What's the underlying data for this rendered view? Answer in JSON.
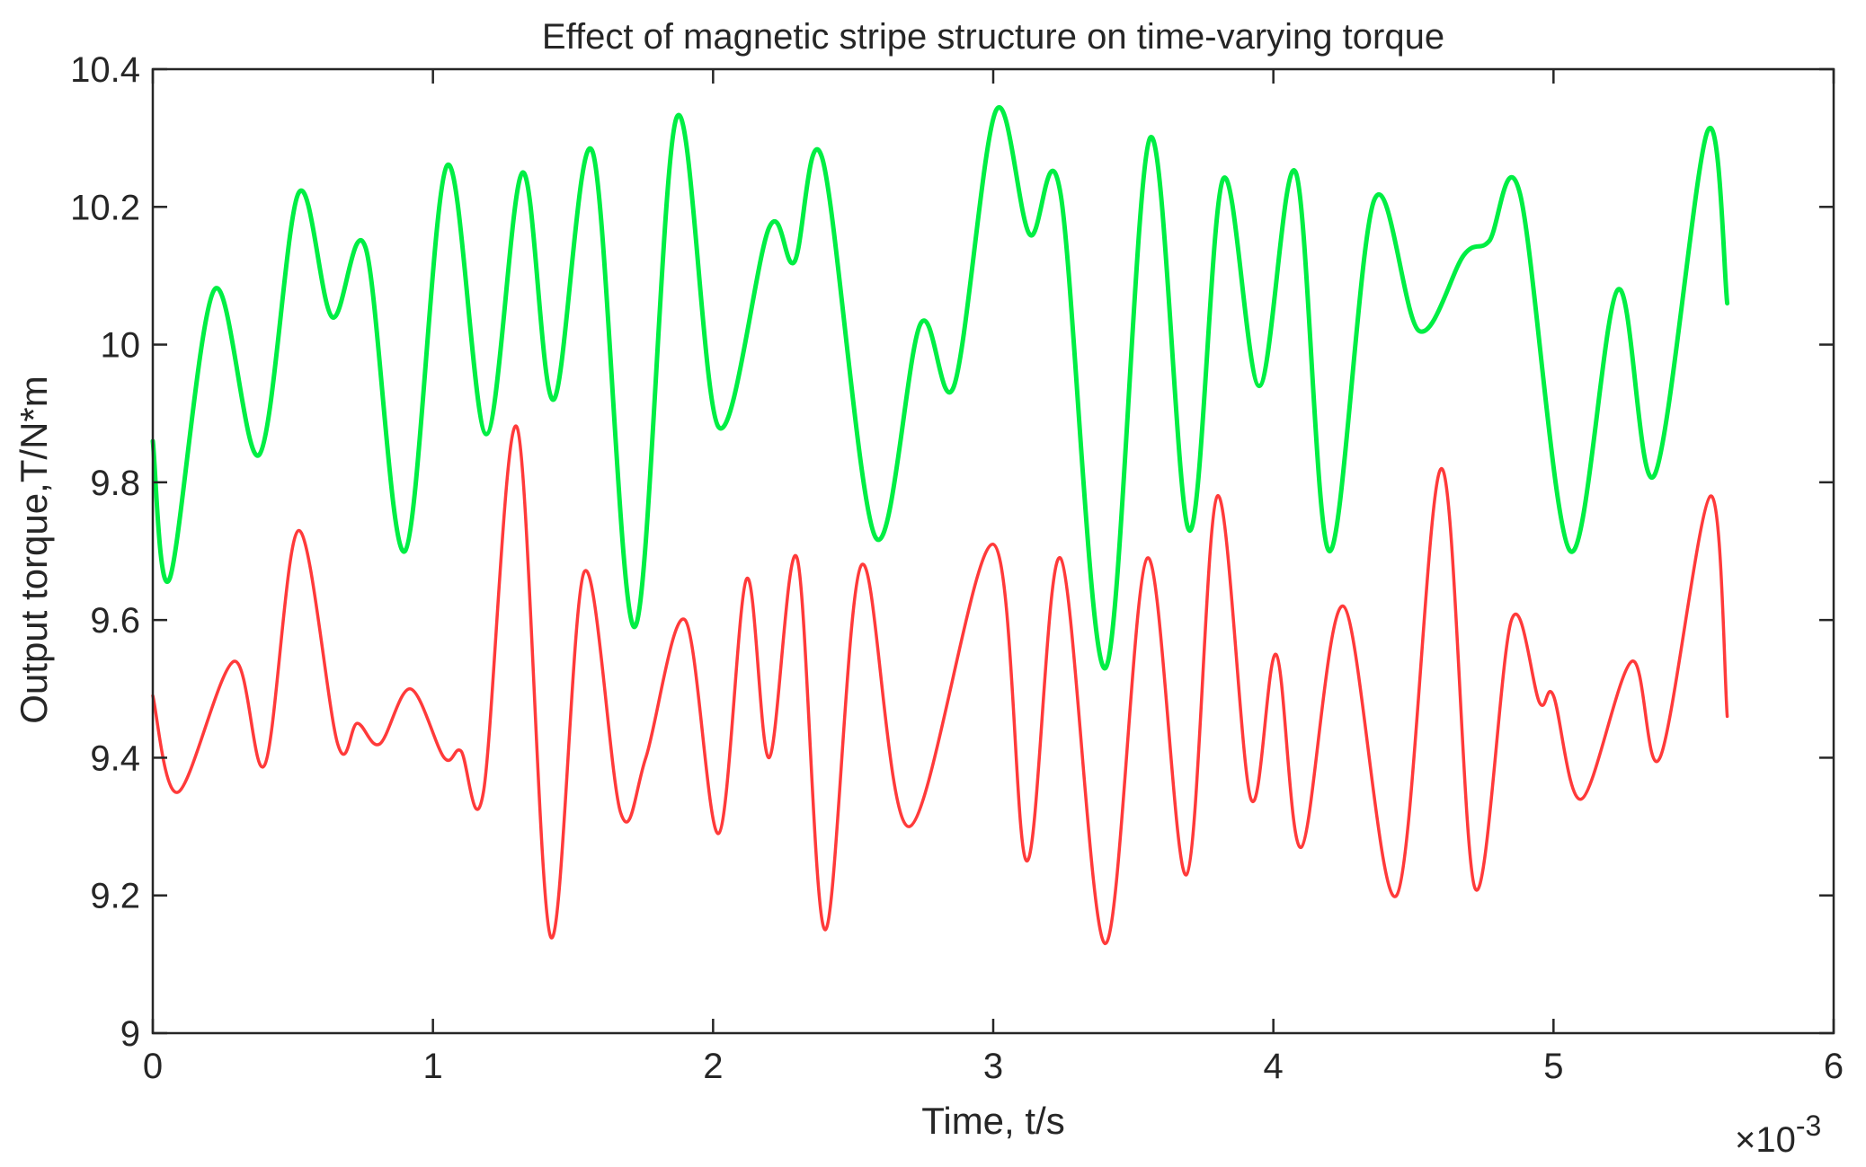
{
  "chart_data": {
    "type": "line",
    "title": "Effect of magnetic stripe structure on time-varying torque",
    "xlabel": "Time, t/s",
    "ylabel": "Output torque,T/N*m",
    "x_exponent_label": "×10",
    "x_exponent_power": "-3",
    "xlim": [
      0,
      6
    ],
    "ylim": [
      9.0,
      10.4
    ],
    "xticks": [
      0,
      1,
      2,
      3,
      4,
      5,
      6
    ],
    "xtick_labels": [
      "0",
      "1",
      "2",
      "3",
      "4",
      "5",
      "6"
    ],
    "yticks": [
      9.0,
      9.2,
      9.4,
      9.6,
      9.8,
      10.0,
      10.2,
      10.4
    ],
    "ytick_labels": [
      "9",
      "9.2",
      "9.4",
      "9.6",
      "9.8",
      "10",
      "10.2",
      "10.4"
    ],
    "grid": false,
    "legend": "none",
    "series": [
      {
        "name": "green curve",
        "color": "#00ee44",
        "points": [
          [
            0,
            9.86
          ],
          [
            0.06,
            9.66
          ],
          [
            0.22,
            10.08
          ],
          [
            0.38,
            9.84
          ],
          [
            0.52,
            10.22
          ],
          [
            0.64,
            10.04
          ],
          [
            0.76,
            10.14
          ],
          [
            0.9,
            9.7
          ],
          [
            1.05,
            10.26
          ],
          [
            1.19,
            9.87
          ],
          [
            1.32,
            10.25
          ],
          [
            1.43,
            9.92
          ],
          [
            1.57,
            10.28
          ],
          [
            1.72,
            9.59
          ],
          [
            1.87,
            10.33
          ],
          [
            2.02,
            9.88
          ],
          [
            2.2,
            10.17
          ],
          [
            2.29,
            10.12
          ],
          [
            2.39,
            10.27
          ],
          [
            2.58,
            9.72
          ],
          [
            2.74,
            10.03
          ],
          [
            2.86,
            9.94
          ],
          [
            3.01,
            10.34
          ],
          [
            3.13,
            10.16
          ],
          [
            3.24,
            10.22
          ],
          [
            3.4,
            9.53
          ],
          [
            3.56,
            10.3
          ],
          [
            3.7,
            9.73
          ],
          [
            3.82,
            10.24
          ],
          [
            3.95,
            9.94
          ],
          [
            4.08,
            10.25
          ],
          [
            4.2,
            9.7
          ],
          [
            4.36,
            10.21
          ],
          [
            4.52,
            10.02
          ],
          [
            4.68,
            10.13
          ],
          [
            4.77,
            10.15
          ],
          [
            4.88,
            10.22
          ],
          [
            5.06,
            9.7
          ],
          [
            5.23,
            10.08
          ],
          [
            5.36,
            9.81
          ],
          [
            5.55,
            10.31
          ],
          [
            5.62,
            10.06
          ]
        ]
      },
      {
        "name": "red curve",
        "color": "#ff3a3a",
        "points": [
          [
            0,
            9.49
          ],
          [
            0.09,
            9.35
          ],
          [
            0.29,
            9.54
          ],
          [
            0.4,
            9.39
          ],
          [
            0.52,
            9.73
          ],
          [
            0.66,
            9.42
          ],
          [
            0.73,
            9.45
          ],
          [
            0.81,
            9.42
          ],
          [
            0.92,
            9.5
          ],
          [
            1.04,
            9.4
          ],
          [
            1.1,
            9.41
          ],
          [
            1.18,
            9.35
          ],
          [
            1.3,
            9.88
          ],
          [
            1.42,
            9.14
          ],
          [
            1.54,
            9.67
          ],
          [
            1.67,
            9.32
          ],
          [
            1.76,
            9.4
          ],
          [
            1.9,
            9.6
          ],
          [
            2.02,
            9.29
          ],
          [
            2.12,
            9.66
          ],
          [
            2.2,
            9.4
          ],
          [
            2.3,
            9.69
          ],
          [
            2.4,
            9.15
          ],
          [
            2.53,
            9.68
          ],
          [
            2.7,
            9.3
          ],
          [
            3.0,
            9.71
          ],
          [
            3.12,
            9.25
          ],
          [
            3.24,
            9.69
          ],
          [
            3.4,
            9.13
          ],
          [
            3.55,
            9.69
          ],
          [
            3.69,
            9.23
          ],
          [
            3.8,
            9.78
          ],
          [
            3.92,
            9.34
          ],
          [
            4.01,
            9.55
          ],
          [
            4.1,
            9.27
          ],
          [
            4.25,
            9.62
          ],
          [
            4.44,
            9.2
          ],
          [
            4.6,
            9.82
          ],
          [
            4.72,
            9.21
          ],
          [
            4.85,
            9.6
          ],
          [
            4.95,
            9.48
          ],
          [
            5.0,
            9.49
          ],
          [
            5.1,
            9.34
          ],
          [
            5.28,
            9.54
          ],
          [
            5.38,
            9.4
          ],
          [
            5.56,
            9.78
          ],
          [
            5.62,
            9.46
          ]
        ]
      }
    ]
  }
}
